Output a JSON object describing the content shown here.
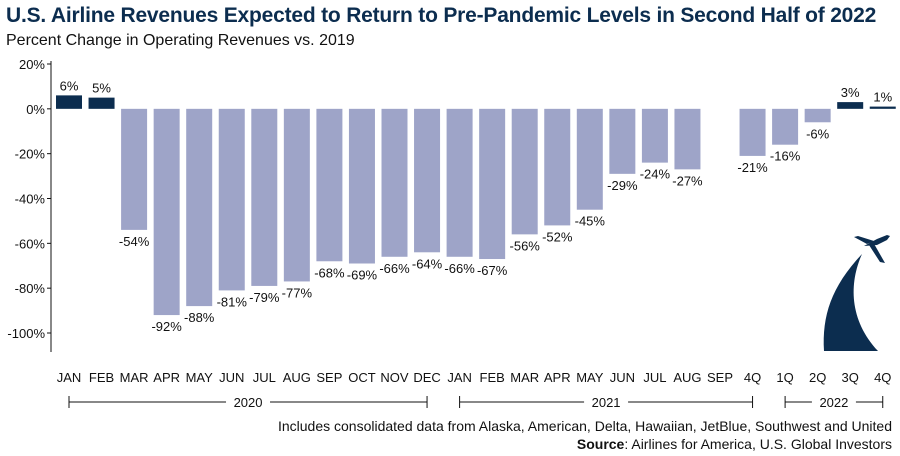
{
  "header": {
    "title": "U.S. Airline Revenues Expected to Return to Pre-Pandemic Levels in Second Half of 2022",
    "subtitle": "Percent Change in Operating Revenues vs. 2019"
  },
  "footer": {
    "note": "Includes consolidated data from Alaska, American, Delta, Hawaiian, JetBlue, Southwest and United",
    "source_label": "Source",
    "source_text": ": Airlines for America, U.S. Global Investors"
  },
  "colors": {
    "positive": "#0c2d4f",
    "negative": "#9ea4c8",
    "axis": "#111111",
    "logo": "#0c2d4f"
  },
  "icons": {
    "logo": "airplane-swoosh-icon"
  },
  "chart_data": {
    "type": "bar",
    "ylim": [
      -100,
      20
    ],
    "yticks": [
      20,
      0,
      -20,
      -40,
      -60,
      -80,
      -100
    ],
    "ytick_labels": [
      "20%",
      "0%",
      "-20%",
      "-40%",
      "-60%",
      "-80%",
      "-100%"
    ],
    "categories": [
      "JAN",
      "FEB",
      "MAR",
      "APR",
      "MAY",
      "JUN",
      "JUL",
      "AUG",
      "SEP",
      "OCT",
      "NOV",
      "DEC",
      "JAN",
      "FEB",
      "MAR",
      "APR",
      "MAY",
      "JUN",
      "JUL",
      "AUG",
      "SEP",
      "4Q",
      "1Q",
      "2Q",
      "3Q",
      "4Q"
    ],
    "values": [
      6,
      5,
      -54,
      -92,
      -88,
      -81,
      -79,
      -77,
      -68,
      -69,
      -66,
      -64,
      -66,
      -67,
      -56,
      -52,
      -45,
      -29,
      -24,
      -27,
      null,
      -21,
      -16,
      -6,
      3,
      1
    ],
    "labels": [
      "6%",
      "5%",
      "-54%",
      "-92%",
      "-88%",
      "-81%",
      "-79%",
      "-77%",
      "-68%",
      "-69%",
      "-66%",
      "-64%",
      "-66%",
      "-67%",
      "-56%",
      "-52%",
      "-45%",
      "-29%",
      "-24%",
      "-27%",
      "",
      "-21%",
      "-16%",
      "-6%",
      "3%",
      "1%"
    ],
    "groups": [
      {
        "label": "2020",
        "start": 0,
        "end": 11
      },
      {
        "label": "2021",
        "start": 12,
        "end": 21
      },
      {
        "label": "2022",
        "start": 22,
        "end": 25
      }
    ],
    "grid": false,
    "legend": "none"
  }
}
